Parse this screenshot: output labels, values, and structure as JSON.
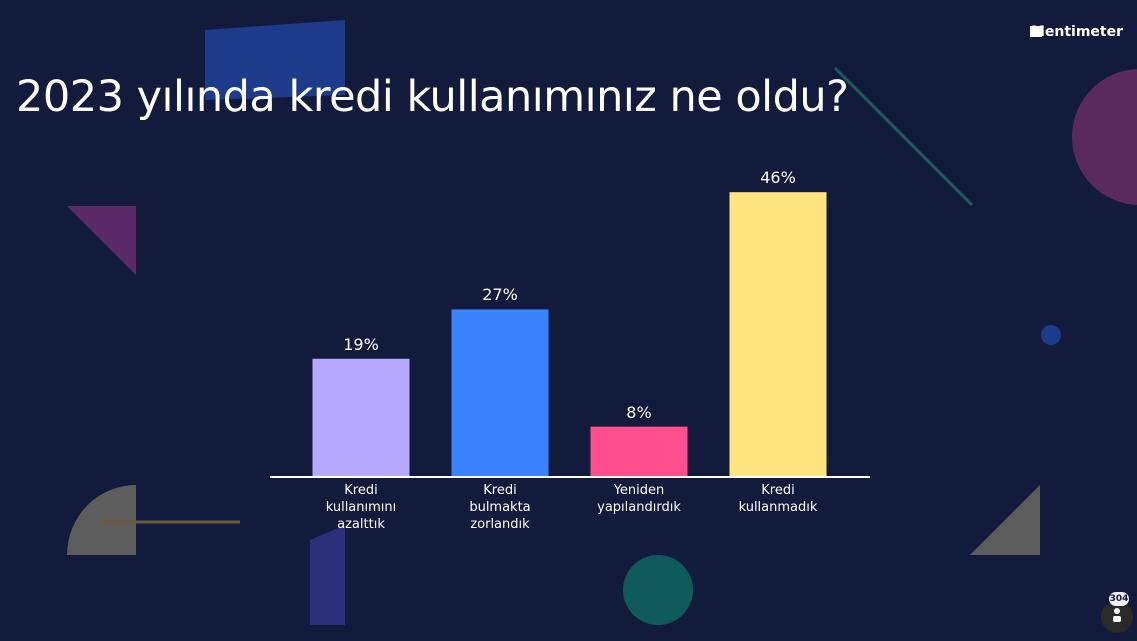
{
  "brand": "Mentimeter",
  "participants": "304",
  "chart_data": {
    "type": "bar",
    "title": "2023 yılında kredi kullanımınız ne oldu?",
    "categories": [
      "Kredi kullanımını azalttık",
      "Kredi bulmakta zorlandık",
      "Yeniden yapılandırdık",
      "Kredi kullanmadık"
    ],
    "values": [
      19,
      27,
      8,
      46
    ],
    "value_labels": [
      "19%",
      "27%",
      "8%",
      "46%"
    ],
    "colors": [
      "#b7a9ff",
      "#3b82ff",
      "#ff4f8c",
      "#ffe57f"
    ]
  }
}
